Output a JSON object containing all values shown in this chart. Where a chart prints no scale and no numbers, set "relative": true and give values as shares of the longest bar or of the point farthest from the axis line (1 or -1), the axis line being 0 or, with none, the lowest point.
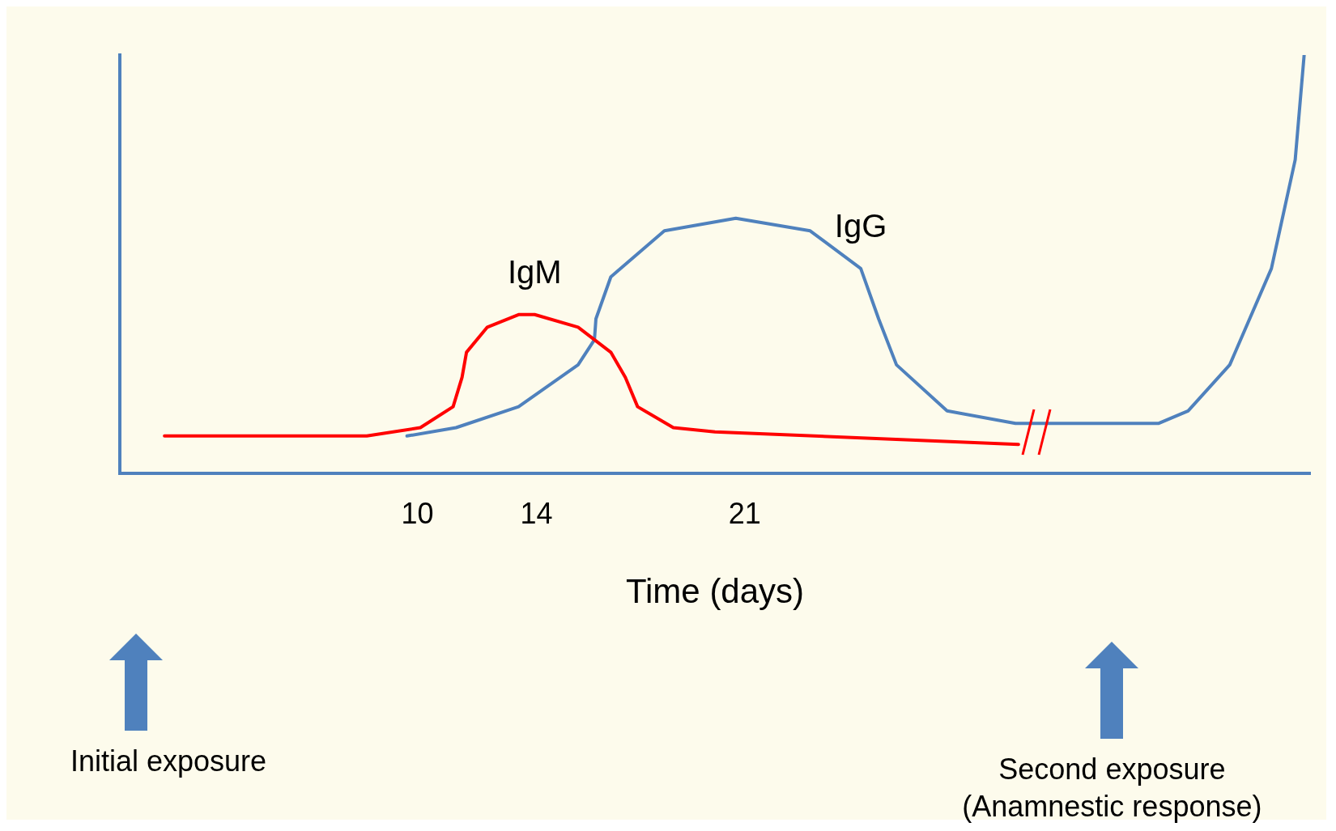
{
  "chart_data": {
    "type": "line",
    "relative": true,
    "xlabel": "Time (days)",
    "xlim": [
      0,
      40
    ],
    "xticks": [
      10,
      14,
      21
    ],
    "grid": false,
    "legend": false,
    "marker": "none",
    "tick_labels": "x",
    "series": [
      {
        "name": "IgM",
        "color": "#ff0000",
        "x": [
          1.5,
          8.3,
          10.1,
          11.2,
          11.5,
          11.65,
          12.35,
          13.4,
          13.94,
          15.4,
          16.5,
          16.99,
          17.4,
          18.6,
          20.0,
          30.2
        ],
        "values": [
          0.09,
          0.09,
          0.11,
          0.16,
          0.23,
          0.29,
          0.35,
          0.38,
          0.38,
          0.35,
          0.29,
          0.23,
          0.16,
          0.11,
          0.1,
          0.07
        ]
      },
      {
        "name": "IgG",
        "color": "#4f81bd",
        "x": [
          9.65,
          11.3,
          13.4,
          15.4,
          15.95,
          16.0,
          16.5,
          18.3,
          20.7,
          23.2,
          24.9,
          25.5,
          26.1,
          27.8,
          30.1,
          34.9,
          35.9,
          37.3,
          38.7,
          39.5,
          39.8
        ],
        "values": [
          0.09,
          0.11,
          0.16,
          0.26,
          0.32,
          0.37,
          0.47,
          0.58,
          0.61,
          0.58,
          0.49,
          0.37,
          0.26,
          0.15,
          0.12,
          0.12,
          0.15,
          0.26,
          0.49,
          0.75,
          1.0
        ]
      }
    ],
    "annotations": [
      "Initial exposure",
      "Second exposure\n(Anamnestic response)"
    ]
  }
}
